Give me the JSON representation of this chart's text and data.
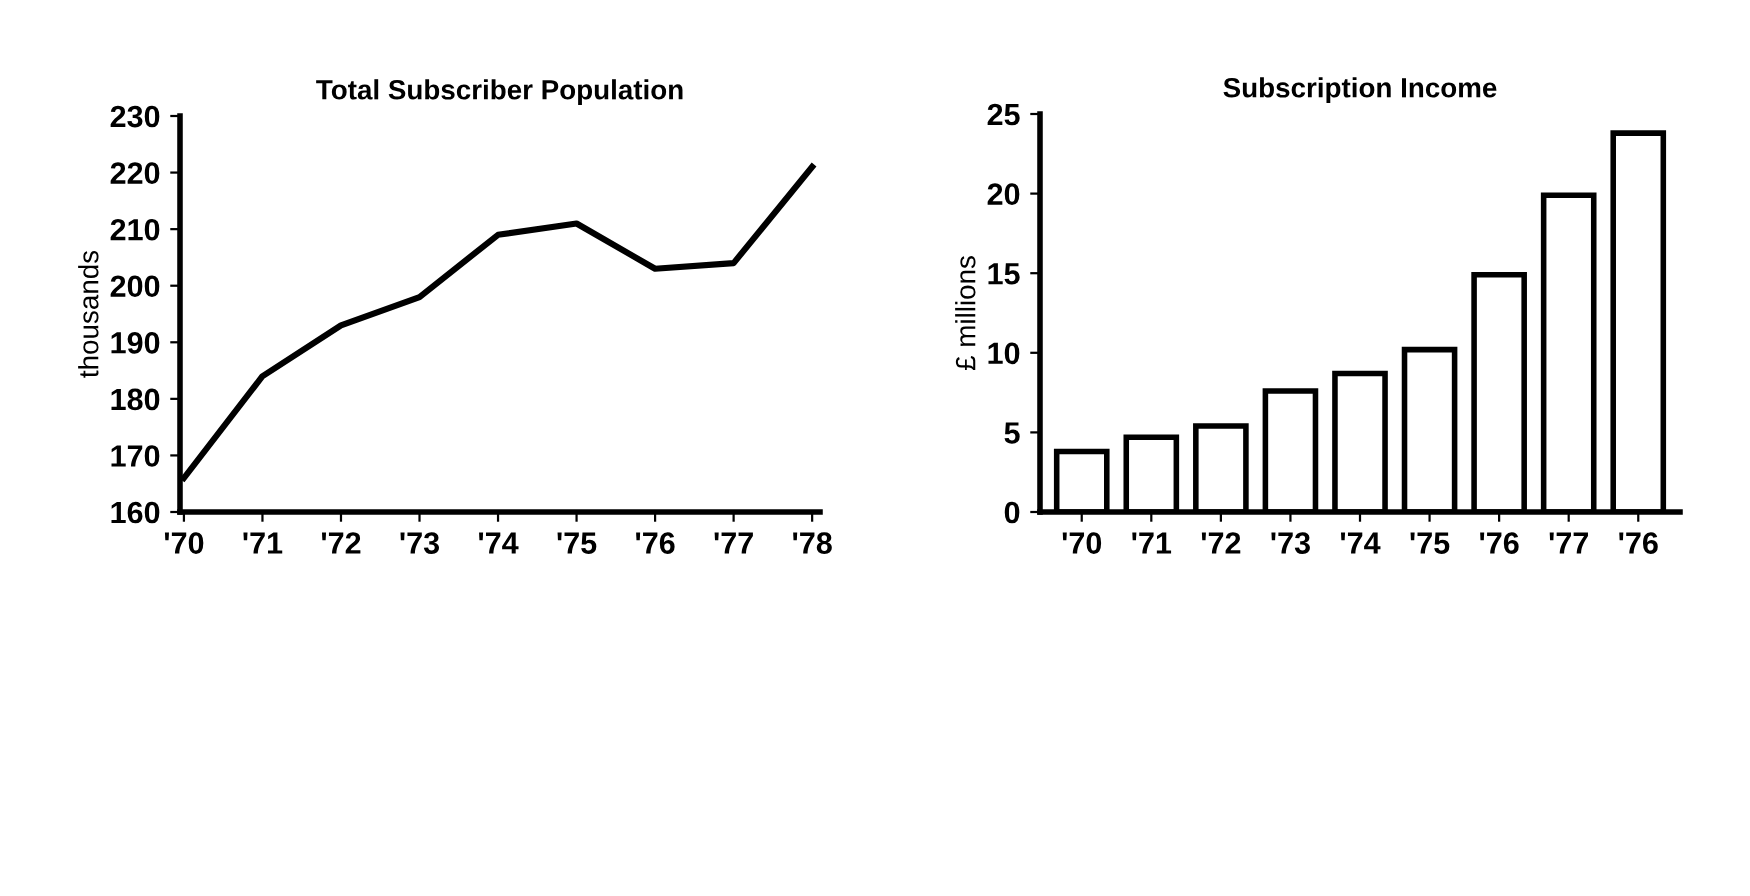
{
  "chart_data": [
    {
      "type": "line",
      "title": "Total Subscriber Population",
      "ylabel": "thousands",
      "categories": [
        "'70",
        "'71",
        "'72",
        "'73",
        "'74",
        "'75",
        "'76",
        "'77",
        "'78"
      ],
      "values": [
        166,
        184,
        193,
        198,
        209,
        211,
        203,
        204,
        221
      ],
      "color": "#000000",
      "ylim": [
        160,
        230
      ],
      "yticks": [
        160,
        170,
        180,
        190,
        200,
        210,
        220,
        230
      ],
      "grid": false,
      "marker": "none",
      "line_style": "solid"
    },
    {
      "type": "bar",
      "title": "Subscription Income",
      "ylabel": "£ millions",
      "categories": [
        "'70",
        "'71",
        "'72",
        "'73",
        "'74",
        "'75",
        "'76",
        "'77",
        "'76"
      ],
      "values": [
        3.8,
        4.7,
        5.4,
        7.6,
        8.7,
        10.2,
        14.9,
        19.9,
        23.8
      ],
      "color": "#ffffff",
      "ylim": [
        0,
        25
      ],
      "yticks": [
        0,
        5,
        10,
        15,
        20,
        25
      ],
      "grid": false
    }
  ]
}
